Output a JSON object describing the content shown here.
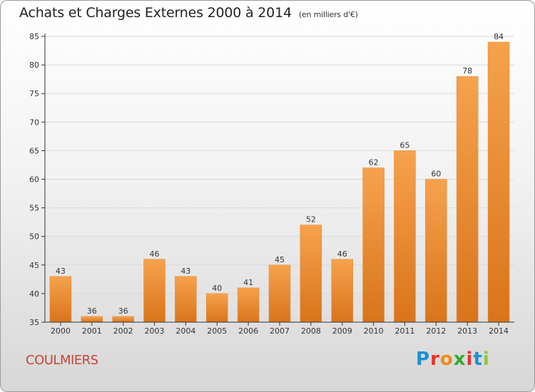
{
  "header": {
    "title": "Achats et Charges Externes 2000 à 2014",
    "unit": "(en milliers d'€)"
  },
  "commune": "COULMIERS",
  "logo": {
    "text": "Proxiti",
    "letter_colors": [
      "#1e8fd6",
      "#e8322b",
      "#f08a17",
      "#36a935",
      "#e8322b",
      "#1e8fd6",
      "#8cc63f"
    ]
  },
  "colors": {
    "bar_light": "#f6a24d",
    "bar_dark": "#d9741b",
    "grid": "#d9d9d9",
    "axis": "#333333",
    "commune_text": "#c8443a"
  },
  "chart_data": {
    "type": "bar",
    "title": "Achats et Charges Externes 2000 à 2014",
    "subtitle": "(en milliers d'€)",
    "xlabel": "",
    "ylabel": "",
    "categories": [
      "2000",
      "2001",
      "2002",
      "2003",
      "2004",
      "2005",
      "2006",
      "2007",
      "2008",
      "2009",
      "2010",
      "2011",
      "2012",
      "2013",
      "2014"
    ],
    "values": [
      43,
      36,
      36,
      46,
      43,
      40,
      41,
      45,
      52,
      46,
      62,
      65,
      60,
      78,
      84
    ],
    "ylim": [
      35,
      85
    ],
    "yticks": [
      35,
      40,
      45,
      50,
      55,
      60,
      65,
      70,
      75,
      80,
      85
    ],
    "grid": true,
    "data_labels": true
  }
}
